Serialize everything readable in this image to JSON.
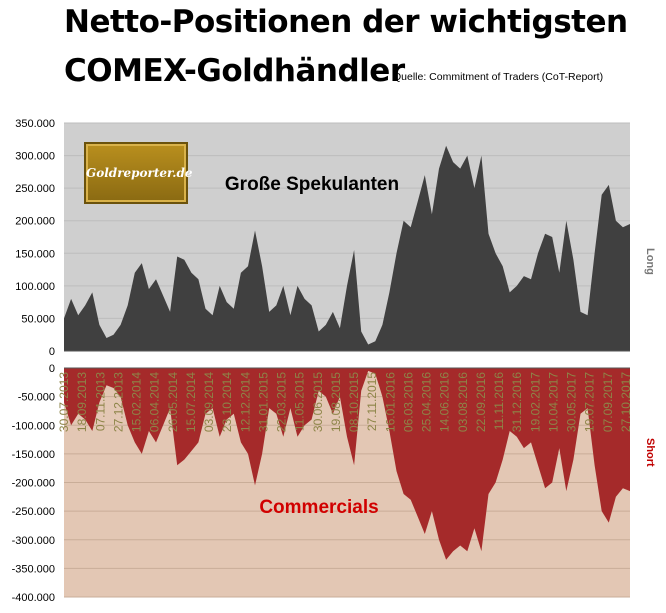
{
  "title_line1": "Netto-Positionen der wichtigsten",
  "title_line2": "COMEX-Goldhändler",
  "source": "Quelle: Commitment of Traders (CoT-Report)",
  "logo_text": "Goldreporter.de",
  "colors": {
    "long_area": "#404040",
    "long_bg": "#cfcfcf",
    "short_area": "#a52a2a",
    "short_bg": "#e3c7b4",
    "date_label": "#8d8548",
    "commercials_label": "#d10000",
    "short_label": "#c00000",
    "long_label": "#777777"
  },
  "chart_data": {
    "type": "area",
    "series": [
      {
        "name": "Große Spekulanten",
        "values": [
          50000,
          80000,
          55000,
          70000,
          90000,
          40000,
          20000,
          25000,
          40000,
          70000,
          120000,
          135000,
          95000,
          110000,
          85000,
          60000,
          145000,
          140000,
          120000,
          110000,
          65000,
          55000,
          100000,
          75000,
          65000,
          120000,
          130000,
          185000,
          130000,
          60000,
          70000,
          100000,
          55000,
          100000,
          80000,
          70000,
          30000,
          40000,
          60000,
          35000,
          100000,
          155000,
          30000,
          10000,
          15000,
          40000,
          90000,
          150000,
          200000,
          190000,
          230000,
          270000,
          210000,
          280000,
          315000,
          290000,
          280000,
          300000,
          250000,
          300000,
          180000,
          150000,
          130000,
          90000,
          100000,
          115000,
          110000,
          150000,
          180000,
          175000,
          120000,
          200000,
          140000,
          60000,
          55000,
          150000,
          240000,
          255000,
          200000,
          190000,
          195000
        ]
      },
      {
        "name": "Commercials",
        "values": [
          -60000,
          -100000,
          -80000,
          -90000,
          -110000,
          -60000,
          -30000,
          -35000,
          -50000,
          -100000,
          -130000,
          -150000,
          -110000,
          -130000,
          -100000,
          -70000,
          -170000,
          -160000,
          -145000,
          -130000,
          -80000,
          -70000,
          -120000,
          -90000,
          -80000,
          -130000,
          -150000,
          -205000,
          -150000,
          -70000,
          -80000,
          -120000,
          -70000,
          -120000,
          -100000,
          -90000,
          -40000,
          -50000,
          -80000,
          -50000,
          -120000,
          -170000,
          -40000,
          -5000,
          -10000,
          -50000,
          -110000,
          -180000,
          -220000,
          -230000,
          -260000,
          -290000,
          -250000,
          -300000,
          -335000,
          -320000,
          -310000,
          -320000,
          -280000,
          -320000,
          -220000,
          -200000,
          -160000,
          -110000,
          -120000,
          -140000,
          -130000,
          -170000,
          -210000,
          -200000,
          -140000,
          -215000,
          -160000,
          -80000,
          -70000,
          -170000,
          -250000,
          -270000,
          -225000,
          -210000,
          -215000
        ]
      }
    ],
    "annotations": [
      "Große Spekulanten",
      "Commercials"
    ],
    "side_labels": {
      "top": "Long",
      "bottom": "Short"
    },
    "x_tick_labels": [
      "30.07.2013",
      "18.09.2013",
      "07.11.2013",
      "27.12.2013",
      "15.02.2014",
      "06.04.2014",
      "26.05.2014",
      "15.07.2014",
      "03.09.2014",
      "23.10.2014",
      "12.12.2014",
      "31.01.2015",
      "22.03.2015",
      "11.05.2015",
      "30.06.2015",
      "19.08.2015",
      "08.10.2015",
      "27.11.2015",
      "16.01.2016",
      "06.03.2016",
      "25.04.2016",
      "14.06.2016",
      "03.08.2016",
      "22.09.2016",
      "11.11.2016",
      "31.12.2016",
      "19.02.2017",
      "10.04.2017",
      "30.05.2017",
      "19.07.2017",
      "07.09.2017",
      "27.10.2017"
    ],
    "y_ticks_long": [
      "350.000",
      "300.000",
      "250.000",
      "200.000",
      "150.000",
      "100.000",
      "50.000",
      "0"
    ],
    "y_ticks_short": [
      "0",
      "-50.000",
      "-100.000",
      "-150.000",
      "-200.000",
      "-250.000",
      "-300.000",
      "-350.000",
      "-400.000"
    ],
    "ylim_long": [
      0,
      350000
    ],
    "ylim_short": [
      -400000,
      0
    ],
    "grid": true
  }
}
